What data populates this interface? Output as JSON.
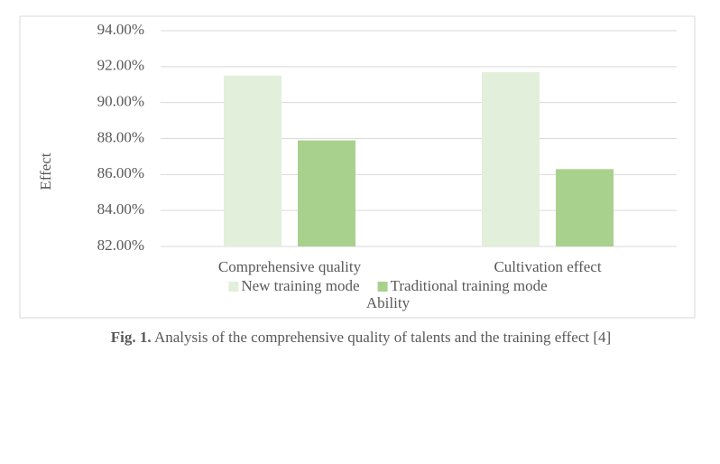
{
  "chart_data": {
    "type": "bar",
    "x_label": "Ability",
    "y_label": "Effect",
    "categories": [
      "Comprehensive quality",
      "Cultivation effect"
    ],
    "series": [
      {
        "name": "New training mode",
        "color": "#e2efda",
        "values": [
          91.5,
          91.7
        ]
      },
      {
        "name": "Traditional training mode",
        "color": "#a9d18e",
        "values": [
          87.9,
          86.3
        ]
      }
    ],
    "ylim": [
      82,
      94
    ],
    "yticks": [
      {
        "value": 82,
        "label": "82.00%"
      },
      {
        "value": 84,
        "label": "84.00%"
      },
      {
        "value": 86,
        "label": "86.00%"
      },
      {
        "value": 88,
        "label": "88.00%"
      },
      {
        "value": 90,
        "label": "90.00%"
      },
      {
        "value": 92,
        "label": "92.00%"
      },
      {
        "value": 94,
        "label": "94.00%"
      }
    ],
    "grid": true,
    "legend": "bottom"
  },
  "caption": {
    "label": "Fig. 1.",
    "text": "Analysis of the comprehensive quality of talents and the training effect [4]"
  }
}
